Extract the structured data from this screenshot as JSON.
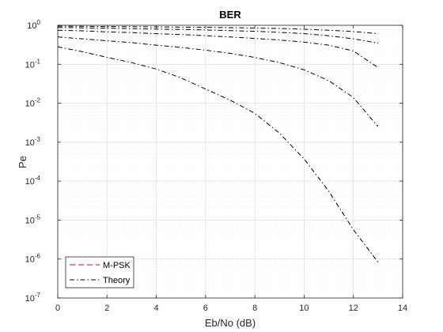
{
  "chart_data": {
    "type": "line",
    "title": "BER",
    "xlabel": "Eb/No (dB)",
    "ylabel": "Pe",
    "xlim": [
      0,
      14
    ],
    "ylim_log10": [
      -7,
      0
    ],
    "yscale": "log",
    "grid": "major+minor",
    "xticks": [
      "0",
      "2",
      "4",
      "6",
      "8",
      "10",
      "12",
      "14"
    ],
    "yticks": [
      {
        "base": "10",
        "exp": "0"
      },
      {
        "base": "10",
        "exp": "-1"
      },
      {
        "base": "10",
        "exp": "-2"
      },
      {
        "base": "10",
        "exp": "-3"
      },
      {
        "base": "10",
        "exp": "-4"
      },
      {
        "base": "10",
        "exp": "-5"
      },
      {
        "base": "10",
        "exp": "-6"
      },
      {
        "base": "10",
        "exp": "-7"
      }
    ],
    "legend": {
      "position": "bottom-left",
      "entries": [
        {
          "label": "M-PSK",
          "color": "#d40000",
          "style": "dashed"
        },
        {
          "label": "Theory",
          "color": "#000000",
          "style": "dashdot"
        }
      ]
    },
    "x": [
      0,
      1,
      2,
      3,
      4,
      5,
      6,
      7,
      8,
      9,
      10,
      11,
      12,
      13
    ],
    "series": [
      {
        "style": "dashdot",
        "color": "#000000",
        "values": [
          0.28,
          0.21,
          0.15,
          0.11,
          0.075,
          0.045,
          0.023,
          0.012,
          0.0055,
          0.0017,
          0.00037,
          5.5e-05,
          5.7e-06,
          8.3e-07
        ]
      },
      {
        "style": "dashdot",
        "color": "#000000",
        "values": [
          0.5,
          0.45,
          0.4,
          0.36,
          0.31,
          0.27,
          0.23,
          0.19,
          0.15,
          0.11,
          0.072,
          0.038,
          0.014,
          0.0025
        ]
      },
      {
        "style": "dashdot",
        "color": "#000000",
        "values": [
          0.75,
          0.72,
          0.68,
          0.65,
          0.61,
          0.58,
          0.54,
          0.5,
          0.46,
          0.42,
          0.37,
          0.31,
          0.22,
          0.082
        ]
      },
      {
        "style": "dashdot",
        "color": "#000000",
        "values": [
          0.88,
          0.86,
          0.84,
          0.82,
          0.8,
          0.78,
          0.76,
          0.73,
          0.7,
          0.66,
          0.61,
          0.54,
          0.45,
          0.35
        ]
      },
      {
        "style": "dashdot",
        "color": "#000000",
        "values": [
          0.95,
          0.94,
          0.93,
          0.92,
          0.91,
          0.9,
          0.89,
          0.87,
          0.85,
          0.83,
          0.79,
          0.75,
          0.69,
          0.61
        ]
      }
    ]
  }
}
